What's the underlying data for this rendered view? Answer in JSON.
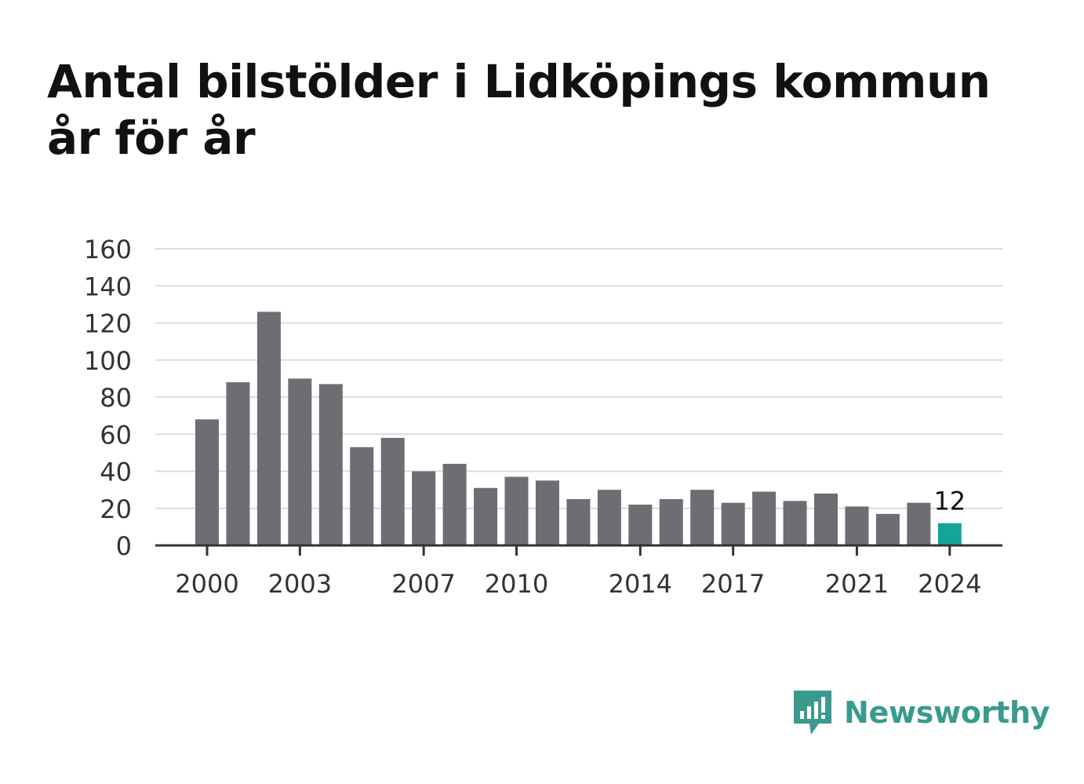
{
  "title": "Antal bilstölder i Lidköpings kommun år för år",
  "brand": {
    "name": "Newsworthy",
    "logo_icon": "speech-bubble-bar-chart-icon",
    "color": "#3a9a8e"
  },
  "chart_data": {
    "type": "bar",
    "title": "Antal bilstölder i Lidköpings kommun år för år",
    "xlabel": "",
    "ylabel": "",
    "x": [
      2000,
      2001,
      2002,
      2003,
      2004,
      2005,
      2006,
      2007,
      2008,
      2009,
      2010,
      2011,
      2012,
      2013,
      2014,
      2015,
      2016,
      2017,
      2018,
      2019,
      2020,
      2021,
      2022,
      2023,
      2024
    ],
    "values": [
      68,
      88,
      126,
      90,
      87,
      53,
      58,
      40,
      44,
      31,
      37,
      35,
      25,
      30,
      22,
      25,
      30,
      23,
      29,
      24,
      28,
      21,
      17,
      23,
      12
    ],
    "ylim": [
      0,
      160
    ],
    "yticks": [
      0,
      20,
      40,
      60,
      80,
      100,
      120,
      140,
      160
    ],
    "xticks": [
      2000,
      2003,
      2007,
      2010,
      2014,
      2017,
      2021,
      2024
    ],
    "grid": true,
    "bar_color": "#6e6d73",
    "highlight_color": "#16a399",
    "highlight_index": 24,
    "annotation": {
      "index": 24,
      "text": "12"
    }
  }
}
